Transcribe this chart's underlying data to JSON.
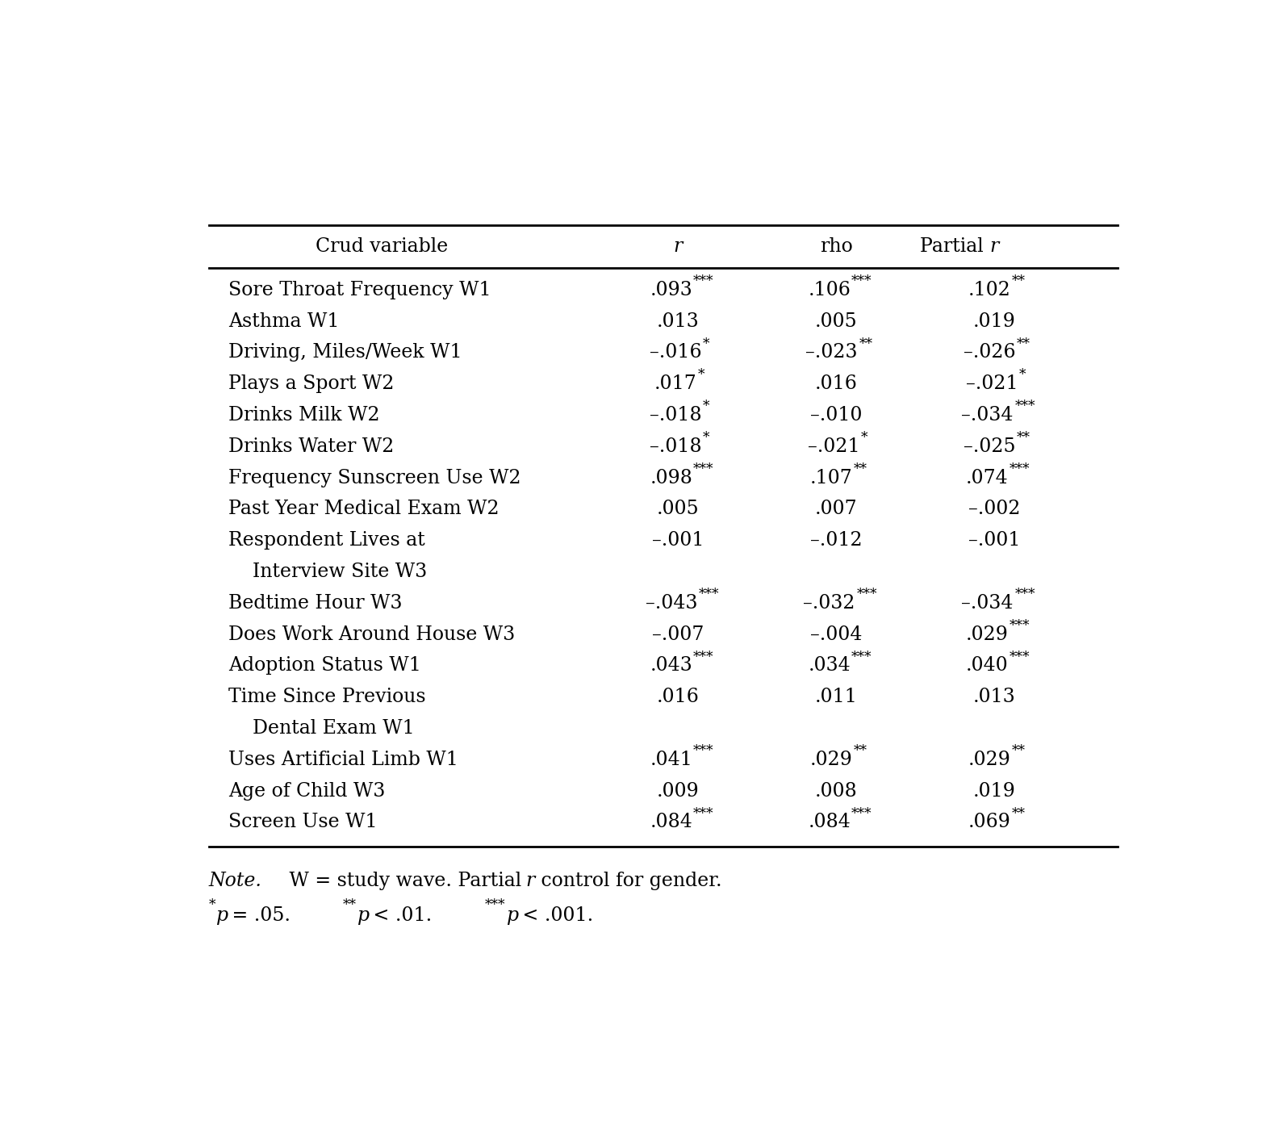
{
  "col_headers": [
    "Crud variable",
    "r",
    "rho",
    "Partial r"
  ],
  "rows": [
    [
      "Sore Throat Frequency W1",
      ".093",
      "***",
      ".106",
      "***",
      ".102",
      "**"
    ],
    [
      "Asthma W1",
      ".013",
      "",
      ".005",
      "",
      ".019",
      ""
    ],
    [
      "Driving, Miles/Week W1",
      "–.016",
      "*",
      "–.023",
      "**",
      "–.026",
      "**"
    ],
    [
      "Plays a Sport W2",
      ".017",
      "*",
      ".016",
      "",
      "–.021",
      "*"
    ],
    [
      "Drinks Milk W2",
      "–.018",
      "*",
      "–.010",
      "",
      "–.034",
      "***"
    ],
    [
      "Drinks Water W2",
      "–.018",
      "*",
      "–.021",
      "*",
      "–.025",
      "**"
    ],
    [
      "Frequency Sunscreen Use W2",
      ".098",
      "***",
      ".107",
      "**",
      ".074",
      "***"
    ],
    [
      "Past Year Medical Exam W2",
      ".005",
      "",
      ".007",
      "",
      "–.002",
      ""
    ],
    [
      "Respondent Lives at",
      "–.001",
      "",
      "–.012",
      "",
      "–.001",
      ""
    ],
    [
      "    Interview Site W3",
      "",
      "",
      "",
      "",
      "",
      ""
    ],
    [
      "Bedtime Hour W3",
      "–.043",
      "***",
      "–.032",
      "***",
      "–.034",
      "***"
    ],
    [
      "Does Work Around House W3",
      "–.007",
      "",
      "–.004",
      "",
      ".029",
      "***"
    ],
    [
      "Adoption Status W1",
      ".043",
      "***",
      ".034",
      "***",
      ".040",
      "***"
    ],
    [
      "Time Since Previous",
      ".016",
      "",
      ".011",
      "",
      ".013",
      ""
    ],
    [
      "    Dental Exam W1",
      "",
      "",
      "",
      "",
      "",
      ""
    ],
    [
      "Uses Artificial Limb W1",
      ".041",
      "***",
      ".029",
      "**",
      ".029",
      "**"
    ],
    [
      "Age of Child W3",
      ".009",
      "",
      ".008",
      "",
      ".019",
      ""
    ],
    [
      "Screen Use W1",
      ".084",
      "***",
      ".084",
      "***",
      ".069",
      "**"
    ]
  ],
  "bg_color": "#ffffff",
  "text_color": "#000000",
  "font_size": 17,
  "header_font_size": 17
}
